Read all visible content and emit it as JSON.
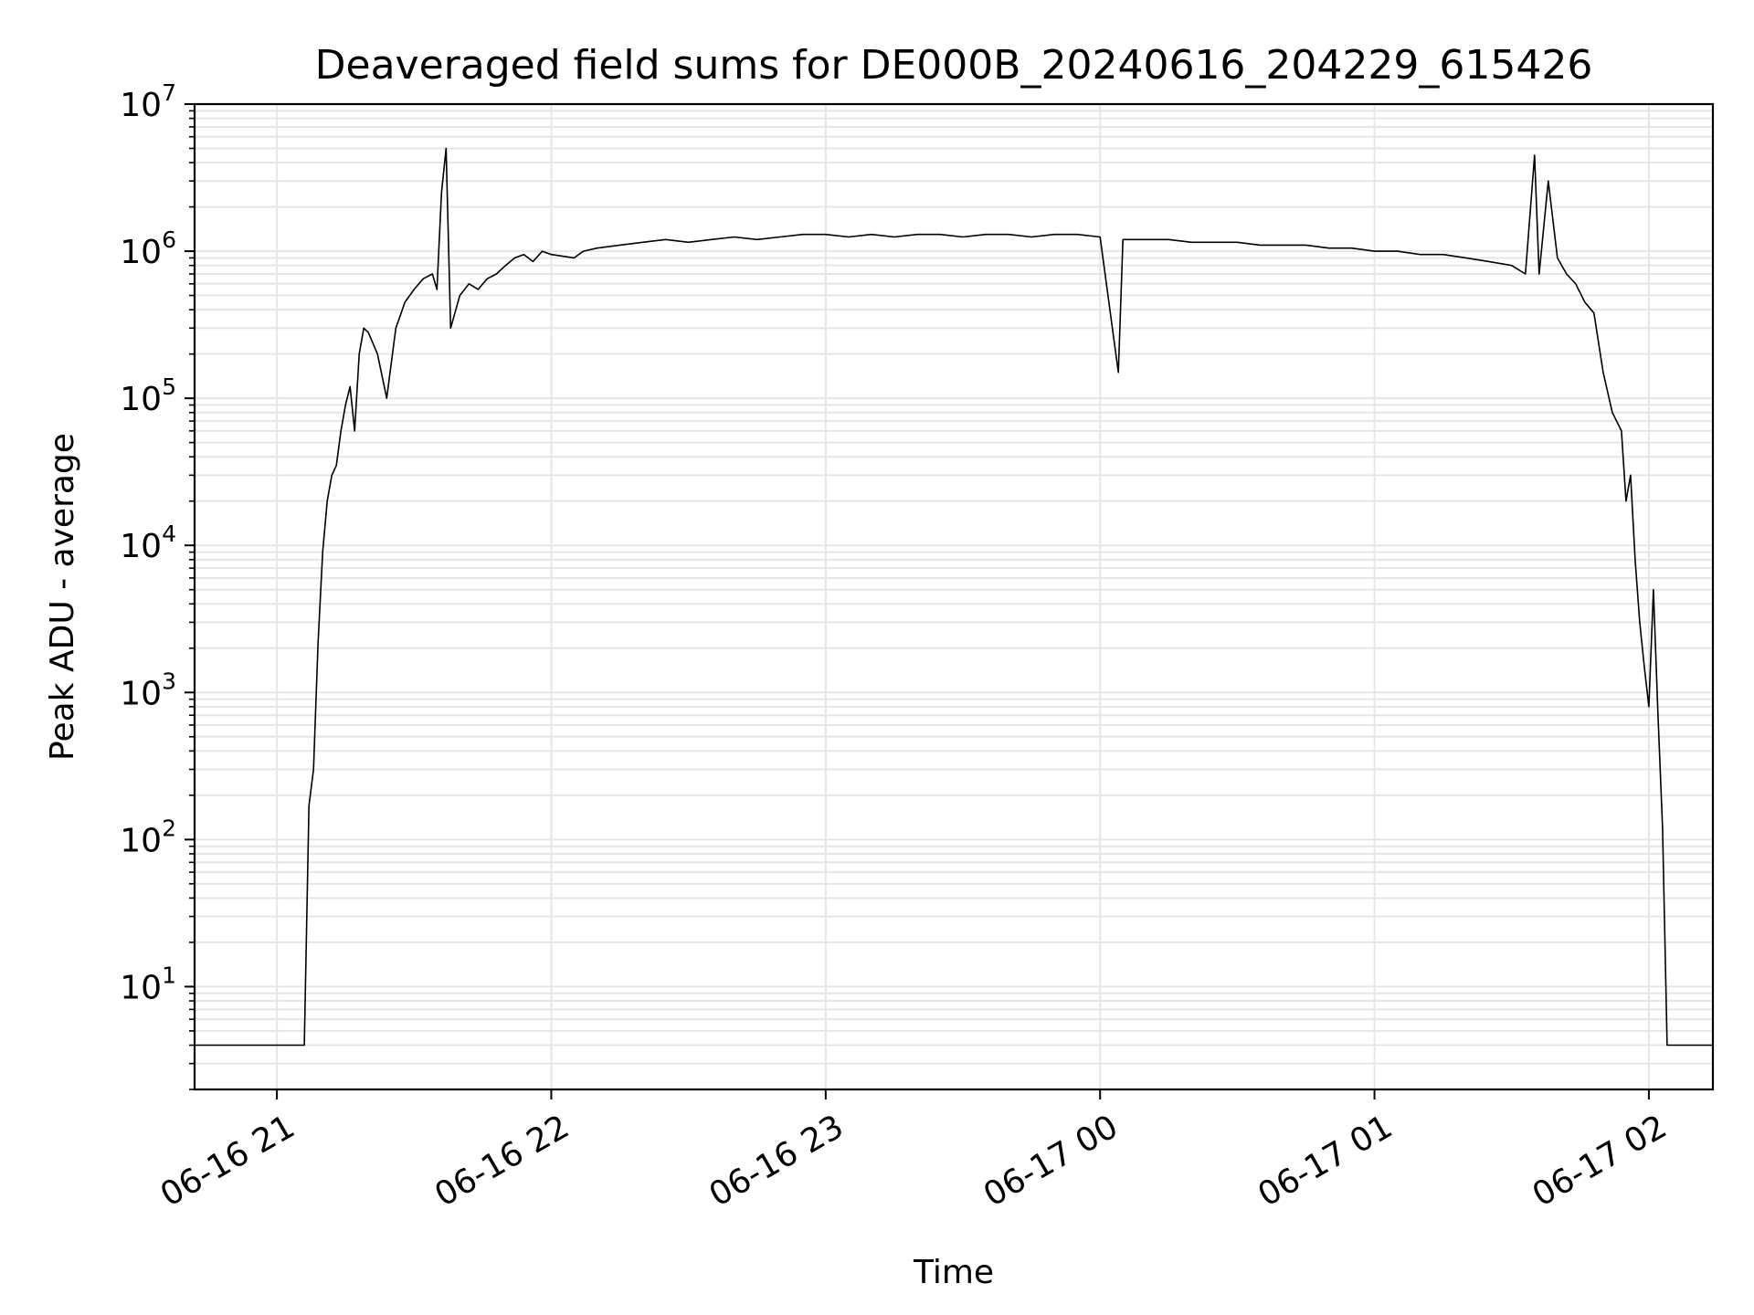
{
  "chart_data": {
    "type": "line",
    "title": "Deaveraged field sums for DE000B_20240616_204229_615426",
    "xlabel": "Time",
    "ylabel": "Peak ADU - average",
    "x_scale": "time",
    "y_scale": "log",
    "xlim": [
      "2024-06-16 20:42",
      "2024-06-17 02:14"
    ],
    "ylim": [
      2,
      10000000
    ],
    "grid": true,
    "x_ticks": [
      {
        "value": "2024-06-16 21:00",
        "label": "06-16 21"
      },
      {
        "value": "2024-06-16 22:00",
        "label": "06-16 22"
      },
      {
        "value": "2024-06-16 23:00",
        "label": "06-16 23"
      },
      {
        "value": "2024-06-17 00:00",
        "label": "06-17 00"
      },
      {
        "value": "2024-06-17 01:00",
        "label": "06-17 01"
      },
      {
        "value": "2024-06-17 02:00",
        "label": "06-17 02"
      }
    ],
    "y_ticks": [
      {
        "value": 10,
        "base": "10",
        "exp": "1"
      },
      {
        "value": 100,
        "base": "10",
        "exp": "2"
      },
      {
        "value": 1000,
        "base": "10",
        "exp": "3"
      },
      {
        "value": 10000,
        "base": "10",
        "exp": "4"
      },
      {
        "value": 100000,
        "base": "10",
        "exp": "5"
      },
      {
        "value": 1000000,
        "base": "10",
        "exp": "6"
      },
      {
        "value": 10000000,
        "base": "10",
        "exp": "7"
      }
    ],
    "line_color": "#000000",
    "series": [
      {
        "x": [
          "2024-06-16 20:42",
          "2024-06-16 21:06",
          "2024-06-16 21:07",
          "2024-06-16 21:08",
          "2024-06-16 21:09",
          "2024-06-16 21:10",
          "2024-06-16 21:11",
          "2024-06-16 21:12",
          "2024-06-16 21:13",
          "2024-06-16 21:14",
          "2024-06-16 21:15",
          "2024-06-16 21:16",
          "2024-06-16 21:17",
          "2024-06-16 21:18",
          "2024-06-16 21:19",
          "2024-06-16 21:20",
          "2024-06-16 21:22",
          "2024-06-16 21:24",
          "2024-06-16 21:26",
          "2024-06-16 21:28",
          "2024-06-16 21:30",
          "2024-06-16 21:32",
          "2024-06-16 21:34",
          "2024-06-16 21:35",
          "2024-06-16 21:36",
          "2024-06-16 21:37",
          "2024-06-16 21:38",
          "2024-06-16 21:40",
          "2024-06-16 21:42",
          "2024-06-16 21:44",
          "2024-06-16 21:46",
          "2024-06-16 21:48",
          "2024-06-16 21:50",
          "2024-06-16 21:52",
          "2024-06-16 21:54",
          "2024-06-16 21:56",
          "2024-06-16 21:58",
          "2024-06-16 22:00",
          "2024-06-16 22:05",
          "2024-06-16 22:07",
          "2024-06-16 22:10",
          "2024-06-16 22:15",
          "2024-06-16 22:20",
          "2024-06-16 22:25",
          "2024-06-16 22:30",
          "2024-06-16 22:35",
          "2024-06-16 22:40",
          "2024-06-16 22:45",
          "2024-06-16 22:50",
          "2024-06-16 22:55",
          "2024-06-16 23:00",
          "2024-06-16 23:05",
          "2024-06-16 23:10",
          "2024-06-16 23:15",
          "2024-06-16 23:20",
          "2024-06-16 23:25",
          "2024-06-16 23:30",
          "2024-06-16 23:35",
          "2024-06-16 23:40",
          "2024-06-16 23:45",
          "2024-06-16 23:50",
          "2024-06-16 23:55",
          "2024-06-17 00:00",
          "2024-06-17 00:04",
          "2024-06-17 00:05",
          "2024-06-17 00:10",
          "2024-06-17 00:15",
          "2024-06-17 00:20",
          "2024-06-17 00:25",
          "2024-06-17 00:30",
          "2024-06-17 00:35",
          "2024-06-17 00:40",
          "2024-06-17 00:45",
          "2024-06-17 00:50",
          "2024-06-17 00:55",
          "2024-06-17 01:00",
          "2024-06-17 01:05",
          "2024-06-17 01:10",
          "2024-06-17 01:15",
          "2024-06-17 01:20",
          "2024-06-17 01:25",
          "2024-06-17 01:30",
          "2024-06-17 01:33",
          "2024-06-17 01:35",
          "2024-06-17 01:36",
          "2024-06-17 01:38",
          "2024-06-17 01:40",
          "2024-06-17 01:42",
          "2024-06-17 01:44",
          "2024-06-17 01:46",
          "2024-06-17 01:48",
          "2024-06-17 01:50",
          "2024-06-17 01:52",
          "2024-06-17 01:54",
          "2024-06-17 01:55",
          "2024-06-17 01:56",
          "2024-06-17 01:57",
          "2024-06-17 01:58",
          "2024-06-17 01:59",
          "2024-06-17 02:00",
          "2024-06-17 02:01",
          "2024-06-17 02:02",
          "2024-06-17 02:03",
          "2024-06-17 02:04",
          "2024-06-17 02:14"
        ],
        "values": [
          4,
          4,
          170,
          300,
          2200,
          9000,
          20000,
          30000,
          35000,
          60000,
          90000,
          120000,
          60000,
          200000,
          300000,
          280000,
          200000,
          100000,
          300000,
          450000,
          550000,
          650000,
          700000,
          550000,
          2500000,
          5000000,
          300000,
          500000,
          600000,
          550000,
          650000,
          700000,
          800000,
          900000,
          950000,
          850000,
          1000000,
          950000,
          900000,
          1000000,
          1050000,
          1100000,
          1150000,
          1200000,
          1150000,
          1200000,
          1250000,
          1200000,
          1250000,
          1300000,
          1300000,
          1250000,
          1300000,
          1250000,
          1300000,
          1300000,
          1250000,
          1300000,
          1300000,
          1250000,
          1300000,
          1300000,
          1250000,
          150000,
          1200000,
          1200000,
          1200000,
          1150000,
          1150000,
          1150000,
          1100000,
          1100000,
          1100000,
          1050000,
          1050000,
          1000000,
          1000000,
          950000,
          950000,
          900000,
          850000,
          800000,
          700000,
          4500000,
          700000,
          3000000,
          900000,
          700000,
          600000,
          450000,
          380000,
          150000,
          80000,
          60000,
          20000,
          30000,
          8000,
          3000,
          1500,
          800,
          5000,
          700,
          120,
          4,
          4
        ]
      }
    ]
  }
}
